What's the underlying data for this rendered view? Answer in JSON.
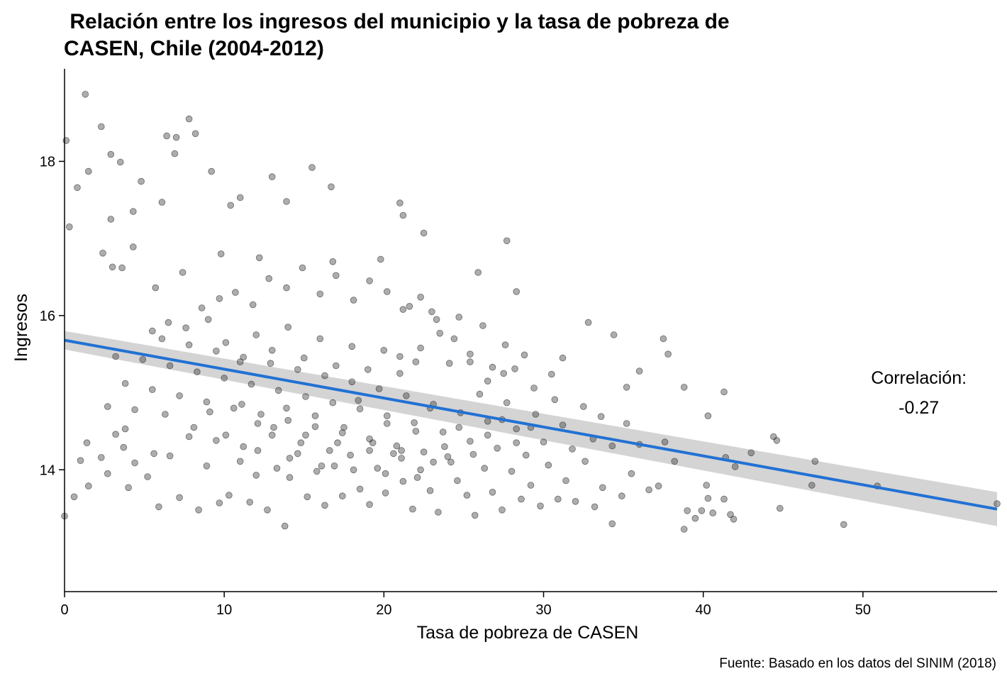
{
  "chart_data": {
    "type": "scatter",
    "title_lines": [
      " Relación entre los ingresos del municipio y la tasa de pobreza de",
      "CASEN, Chile (2004-2012)"
    ],
    "xlabel": "Tasa de pobreza de CASEN",
    "ylabel": "Ingresos",
    "xlim": [
      0,
      58.4
    ],
    "ylim": [
      12.42,
      19.2
    ],
    "x_ticks": [
      0,
      10,
      20,
      30,
      40,
      50
    ],
    "y_ticks": [
      14,
      16,
      18
    ],
    "x_tick_labels": [
      "0",
      "10",
      "20",
      "30",
      "40",
      "50"
    ],
    "y_tick_labels": [
      "14",
      "16",
      "18"
    ],
    "grid": false,
    "legend": "none",
    "fit_line": {
      "x": [
        0,
        58.4
      ],
      "y": [
        15.68,
        13.49
      ],
      "ci_low": [
        15.56,
        13.27
      ],
      "ci_high": [
        15.8,
        13.71
      ],
      "color": "#2171d4",
      "ribbon_color": "#d4d4d4"
    },
    "annotation": {
      "label": "Correlación:",
      "value": "-0.27",
      "x": 53.5
    },
    "caption": "Fuente: Basado en los datos del SINIM (2018)",
    "point_color": "#333333",
    "points": [
      [
        0.1,
        18.27
      ],
      [
        1.3,
        18.87
      ],
      [
        2.3,
        18.45
      ],
      [
        6.4,
        18.33
      ],
      [
        7.0,
        18.31
      ],
      [
        7.8,
        18.55
      ],
      [
        8.2,
        18.36
      ],
      [
        6.9,
        18.1
      ],
      [
        2.9,
        18.09
      ],
      [
        3.5,
        17.99
      ],
      [
        0.3,
        17.15
      ],
      [
        0.8,
        17.66
      ],
      [
        1.5,
        17.87
      ],
      [
        4.8,
        17.74
      ],
      [
        4.3,
        17.35
      ],
      [
        6.1,
        17.47
      ],
      [
        9.2,
        17.87
      ],
      [
        10.4,
        17.43
      ],
      [
        11.0,
        17.53
      ],
      [
        13.0,
        17.8
      ],
      [
        13.9,
        17.48
      ],
      [
        15.5,
        17.92
      ],
      [
        16.7,
        17.67
      ],
      [
        21.0,
        17.46
      ],
      [
        21.2,
        17.3
      ],
      [
        22.5,
        17.07
      ],
      [
        27.7,
        16.97
      ],
      [
        2.9,
        17.25
      ],
      [
        3.0,
        16.63
      ],
      [
        3.6,
        16.62
      ],
      [
        2.4,
        16.81
      ],
      [
        4.3,
        16.89
      ],
      [
        5.7,
        16.36
      ],
      [
        7.4,
        16.56
      ],
      [
        9.8,
        16.8
      ],
      [
        12.2,
        16.75
      ],
      [
        16.8,
        16.7
      ],
      [
        19.8,
        16.73
      ],
      [
        25.9,
        16.56
      ],
      [
        28.3,
        16.31
      ],
      [
        0.0,
        13.4
      ],
      [
        0.6,
        13.65
      ],
      [
        1.0,
        14.12
      ],
      [
        1.5,
        13.79
      ],
      [
        1.4,
        14.35
      ],
      [
        2.3,
        14.16
      ],
      [
        2.7,
        13.95
      ],
      [
        3.2,
        14.46
      ],
      [
        3.7,
        14.29
      ],
      [
        4.0,
        13.77
      ],
      [
        3.8,
        14.53
      ],
      [
        4.4,
        14.09
      ],
      [
        5.2,
        13.91
      ],
      [
        5.6,
        14.21
      ],
      [
        5.9,
        13.52
      ],
      [
        6.3,
        14.72
      ],
      [
        6.6,
        14.18
      ],
      [
        7.2,
        13.64
      ],
      [
        7.8,
        14.43
      ],
      [
        8.4,
        13.48
      ],
      [
        8.9,
        14.05
      ],
      [
        9.5,
        14.38
      ],
      [
        9.7,
        13.57
      ],
      [
        10.3,
        13.67
      ],
      [
        11.0,
        14.11
      ],
      [
        11.6,
        13.58
      ],
      [
        12.0,
        13.93
      ],
      [
        12.7,
        13.48
      ],
      [
        13.3,
        14.02
      ],
      [
        13.8,
        13.27
      ],
      [
        14.1,
        13.9
      ],
      [
        14.6,
        14.21
      ],
      [
        15.2,
        13.65
      ],
      [
        15.8,
        13.98
      ],
      [
        16.3,
        13.54
      ],
      [
        16.9,
        14.05
      ],
      [
        17.4,
        13.66
      ],
      [
        17.9,
        14.19
      ],
      [
        18.5,
        13.75
      ],
      [
        19.1,
        13.55
      ],
      [
        19.6,
        14.02
      ],
      [
        20.1,
        13.7
      ],
      [
        20.6,
        14.21
      ],
      [
        21.2,
        13.85
      ],
      [
        21.8,
        13.49
      ],
      [
        22.3,
        14.0
      ],
      [
        22.9,
        13.73
      ],
      [
        23.4,
        13.45
      ],
      [
        24.0,
        14.17
      ],
      [
        24.6,
        13.86
      ],
      [
        25.2,
        13.67
      ],
      [
        25.7,
        13.41
      ],
      [
        26.3,
        14.02
      ],
      [
        26.8,
        13.71
      ],
      [
        27.4,
        13.48
      ],
      [
        28.0,
        13.98
      ],
      [
        28.6,
        13.62
      ],
      [
        29.2,
        13.8
      ],
      [
        29.8,
        13.53
      ],
      [
        30.3,
        14.06
      ],
      [
        30.9,
        13.62
      ],
      [
        31.4,
        13.86
      ],
      [
        32.0,
        13.59
      ],
      [
        32.6,
        14.11
      ],
      [
        33.2,
        13.52
      ],
      [
        33.7,
        13.77
      ],
      [
        34.3,
        13.3
      ],
      [
        34.9,
        13.66
      ],
      [
        35.5,
        13.95
      ],
      [
        36.0,
        14.33
      ],
      [
        36.6,
        13.74
      ],
      [
        37.2,
        13.79
      ],
      [
        37.6,
        14.36
      ],
      [
        38.2,
        14.11
      ],
      [
        38.8,
        13.23
      ],
      [
        39.0,
        13.47
      ],
      [
        39.5,
        13.37
      ],
      [
        39.9,
        13.47
      ],
      [
        40.2,
        13.8
      ],
      [
        40.3,
        13.63
      ],
      [
        40.6,
        13.44
      ],
      [
        41.3,
        13.62
      ],
      [
        41.4,
        14.16
      ],
      [
        41.7,
        13.42
      ],
      [
        41.9,
        13.36
      ],
      [
        42.0,
        14.04
      ],
      [
        43.0,
        14.22
      ],
      [
        44.4,
        14.43
      ],
      [
        44.6,
        14.38
      ],
      [
        44.8,
        13.5
      ],
      [
        46.8,
        13.8
      ],
      [
        47.0,
        14.11
      ],
      [
        48.8,
        13.29
      ],
      [
        50.9,
        13.79
      ],
      [
        58.4,
        13.56
      ],
      [
        37.5,
        15.7
      ],
      [
        37.8,
        15.5
      ],
      [
        38.8,
        15.07
      ],
      [
        40.3,
        14.7
      ],
      [
        41.3,
        15.01
      ],
      [
        36.0,
        15.28
      ],
      [
        35.2,
        15.07
      ],
      [
        34.4,
        15.75
      ],
      [
        32.8,
        15.91
      ],
      [
        31.2,
        15.45
      ],
      [
        30.5,
        15.24
      ],
      [
        29.4,
        15.06
      ],
      [
        28.8,
        15.49
      ],
      [
        28.2,
        15.31
      ],
      [
        27.6,
        15.62
      ],
      [
        26.8,
        15.33
      ],
      [
        26.2,
        15.87
      ],
      [
        25.4,
        15.5
      ],
      [
        24.7,
        15.98
      ],
      [
        24.1,
        15.38
      ],
      [
        23.5,
        15.77
      ],
      [
        23.0,
        16.05
      ],
      [
        22.3,
        15.58
      ],
      [
        21.6,
        16.12
      ],
      [
        21.0,
        15.47
      ],
      [
        35.2,
        14.6
      ],
      [
        34.3,
        14.31
      ],
      [
        33.6,
        14.69
      ],
      [
        33.1,
        14.4
      ],
      [
        32.5,
        14.82
      ],
      [
        31.8,
        14.27
      ],
      [
        31.2,
        14.58
      ],
      [
        30.7,
        14.91
      ],
      [
        30.0,
        14.36
      ],
      [
        29.5,
        14.72
      ],
      [
        28.9,
        14.19
      ],
      [
        28.3,
        14.53
      ],
      [
        27.7,
        14.87
      ],
      [
        27.1,
        14.28
      ],
      [
        26.5,
        14.63
      ],
      [
        26.0,
        14.98
      ],
      [
        25.4,
        14.37
      ],
      [
        24.8,
        14.74
      ],
      [
        24.2,
        14.1
      ],
      [
        23.7,
        14.49
      ],
      [
        23.1,
        14.85
      ],
      [
        22.5,
        14.23
      ],
      [
        21.9,
        14.61
      ],
      [
        21.4,
        14.96
      ],
      [
        20.8,
        14.31
      ],
      [
        20.2,
        14.7
      ],
      [
        19.7,
        15.05
      ],
      [
        19.1,
        14.4
      ],
      [
        18.5,
        14.79
      ],
      [
        18.0,
        15.14
      ],
      [
        17.4,
        14.48
      ],
      [
        16.8,
        14.87
      ],
      [
        16.3,
        15.22
      ],
      [
        15.7,
        14.56
      ],
      [
        15.1,
        14.95
      ],
      [
        14.6,
        15.3
      ],
      [
        14.0,
        14.64
      ],
      [
        13.4,
        15.03
      ],
      [
        12.9,
        15.38
      ],
      [
        12.3,
        14.72
      ],
      [
        11.7,
        15.11
      ],
      [
        11.2,
        15.46
      ],
      [
        10.6,
        14.8
      ],
      [
        10.0,
        15.19
      ],
      [
        9.5,
        15.54
      ],
      [
        8.9,
        14.88
      ],
      [
        8.3,
        15.27
      ],
      [
        7.8,
        15.62
      ],
      [
        7.2,
        14.96
      ],
      [
        6.6,
        15.35
      ],
      [
        6.1,
        15.7
      ],
      [
        5.5,
        15.04
      ],
      [
        4.9,
        15.43
      ],
      [
        4.4,
        14.78
      ],
      [
        3.8,
        15.12
      ],
      [
        3.2,
        15.47
      ],
      [
        2.7,
        14.82
      ],
      [
        5.5,
        15.8
      ],
      [
        6.5,
        15.91
      ],
      [
        7.6,
        15.84
      ],
      [
        8.6,
        16.1
      ],
      [
        9.7,
        16.22
      ],
      [
        10.7,
        16.3
      ],
      [
        11.8,
        16.14
      ],
      [
        12.8,
        16.48
      ],
      [
        13.9,
        16.36
      ],
      [
        14.9,
        16.62
      ],
      [
        16.0,
        16.28
      ],
      [
        17.0,
        16.52
      ],
      [
        18.1,
        16.2
      ],
      [
        19.1,
        16.45
      ],
      [
        20.2,
        16.31
      ],
      [
        21.2,
        16.08
      ],
      [
        22.3,
        16.24
      ],
      [
        23.3,
        15.95
      ],
      [
        24.4,
        15.7
      ],
      [
        25.4,
        15.4
      ],
      [
        26.5,
        15.15
      ],
      [
        27.5,
        15.25
      ],
      [
        11.2,
        14.3
      ],
      [
        12.1,
        14.6
      ],
      [
        13.0,
        14.45
      ],
      [
        13.9,
        14.8
      ],
      [
        14.8,
        14.35
      ],
      [
        15.7,
        14.7
      ],
      [
        16.6,
        14.25
      ],
      [
        17.5,
        14.55
      ],
      [
        18.4,
        14.9
      ],
      [
        19.3,
        14.35
      ],
      [
        20.2,
        14.6
      ],
      [
        21.1,
        14.25
      ],
      [
        22.0,
        14.5
      ],
      [
        22.9,
        14.8
      ],
      [
        23.8,
        14.3
      ],
      [
        24.7,
        14.55
      ],
      [
        25.6,
        14.2
      ],
      [
        26.5,
        14.45
      ],
      [
        27.4,
        14.65
      ],
      [
        28.3,
        14.35
      ],
      [
        29.2,
        14.55
      ],
      [
        9.0,
        15.95
      ],
      [
        10.1,
        15.65
      ],
      [
        11.0,
        15.4
      ],
      [
        12.0,
        15.75
      ],
      [
        13.0,
        15.55
      ],
      [
        14.0,
        15.85
      ],
      [
        15.0,
        15.45
      ],
      [
        16.0,
        15.7
      ],
      [
        17.0,
        15.35
      ],
      [
        18.0,
        15.6
      ],
      [
        19.0,
        15.3
      ],
      [
        20.0,
        15.55
      ],
      [
        21.0,
        15.25
      ],
      [
        22.0,
        15.4
      ],
      [
        8.1,
        14.55
      ],
      [
        9.1,
        14.75
      ],
      [
        10.1,
        14.45
      ],
      [
        11.1,
        14.85
      ],
      [
        12.1,
        14.25
      ],
      [
        13.1,
        14.55
      ],
      [
        14.1,
        14.15
      ],
      [
        15.1,
        14.45
      ],
      [
        16.1,
        14.05
      ],
      [
        17.1,
        14.35
      ],
      [
        18.1,
        14.0
      ],
      [
        19.1,
        14.25
      ],
      [
        20.1,
        13.95
      ],
      [
        21.1,
        14.15
      ],
      [
        22.1,
        13.9
      ],
      [
        23.1,
        14.1
      ]
    ]
  }
}
